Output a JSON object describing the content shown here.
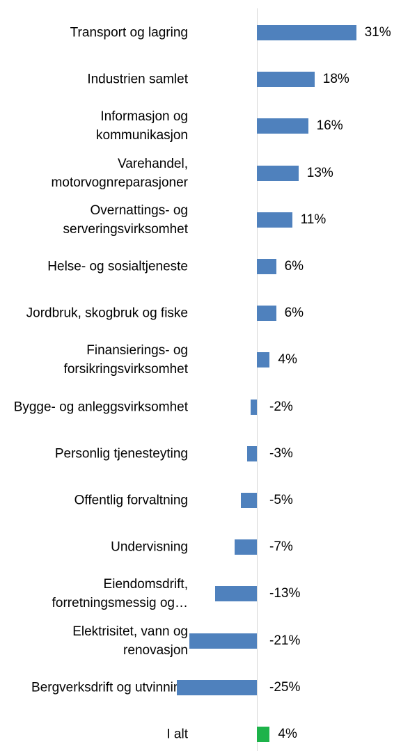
{
  "chart_data": {
    "type": "bar",
    "orientation": "horizontal",
    "categories": [
      "Transport og lagring",
      "Industrien samlet",
      "Informasjon og kommunikasjon",
      "Varehandel, motorvognreparasjoner",
      "Overnattings- og serveringsvirksomhet",
      "Helse- og sosialtjeneste",
      "Jordbruk, skogbruk og fiske",
      "Finansierings- og forsikringsvirksomhet",
      "Bygge- og anleggsvirksomhet",
      "Personlig tjenesteyting",
      "Offentlig forvaltning",
      "Undervisning",
      "Eiendomsdrift, forretningsmessig og…",
      "Elektrisitet, vann og renovasjon",
      "Bergverksdrift og utvinning",
      "I alt"
    ],
    "values": [
      31,
      18,
      16,
      13,
      11,
      6,
      6,
      4,
      -2,
      -3,
      -5,
      -7,
      -13,
      -21,
      -25,
      4
    ],
    "value_labels": [
      "31%",
      "18%",
      "16%",
      "13%",
      "11%",
      "6%",
      "6%",
      "4%",
      "-2%",
      "-3%",
      "-5%",
      "-7%",
      "-13%",
      "-21%",
      "-25%",
      "4%"
    ],
    "colors": [
      "#4f81bd",
      "#4f81bd",
      "#4f81bd",
      "#4f81bd",
      "#4f81bd",
      "#4f81bd",
      "#4f81bd",
      "#4f81bd",
      "#4f81bd",
      "#4f81bd",
      "#4f81bd",
      "#4f81bd",
      "#4f81bd",
      "#4f81bd",
      "#4f81bd",
      "#1db34a"
    ]
  }
}
